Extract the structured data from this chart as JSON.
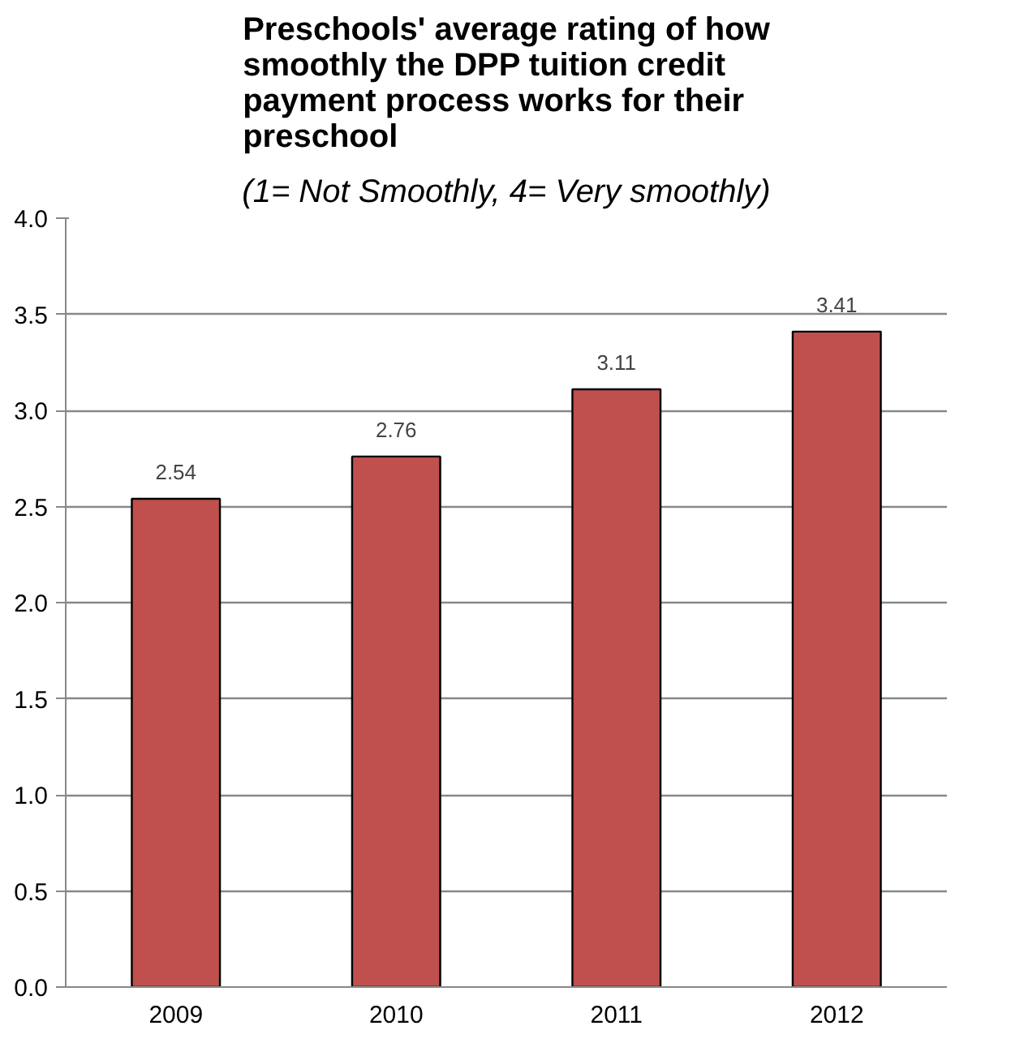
{
  "chart_data": {
    "type": "bar",
    "title": "Preschools' average rating of how smoothly the DPP tuition credit payment process works for their preschool",
    "subtitle": "(1= Not Smoothly, 4= Very smoothly)",
    "categories": [
      "2009",
      "2010",
      "2011",
      "2012"
    ],
    "values": [
      2.54,
      2.76,
      3.11,
      3.41
    ],
    "color": "#c0504d",
    "ylim": [
      0,
      4
    ],
    "yticks": [
      {
        "value": 0,
        "label": "0.0"
      },
      {
        "value": 0.5,
        "label": "0.5"
      },
      {
        "value": 1,
        "label": "1.0"
      },
      {
        "value": 1.5,
        "label": "1.5"
      },
      {
        "value": 2,
        "label": "2.0"
      },
      {
        "value": 2.5,
        "label": "2.5"
      },
      {
        "value": 3,
        "label": "3.0"
      },
      {
        "value": 3.5,
        "label": "3.5"
      },
      {
        "value": 4,
        "label": "4.0"
      }
    ],
    "grid": "y",
    "data_labels": true
  }
}
